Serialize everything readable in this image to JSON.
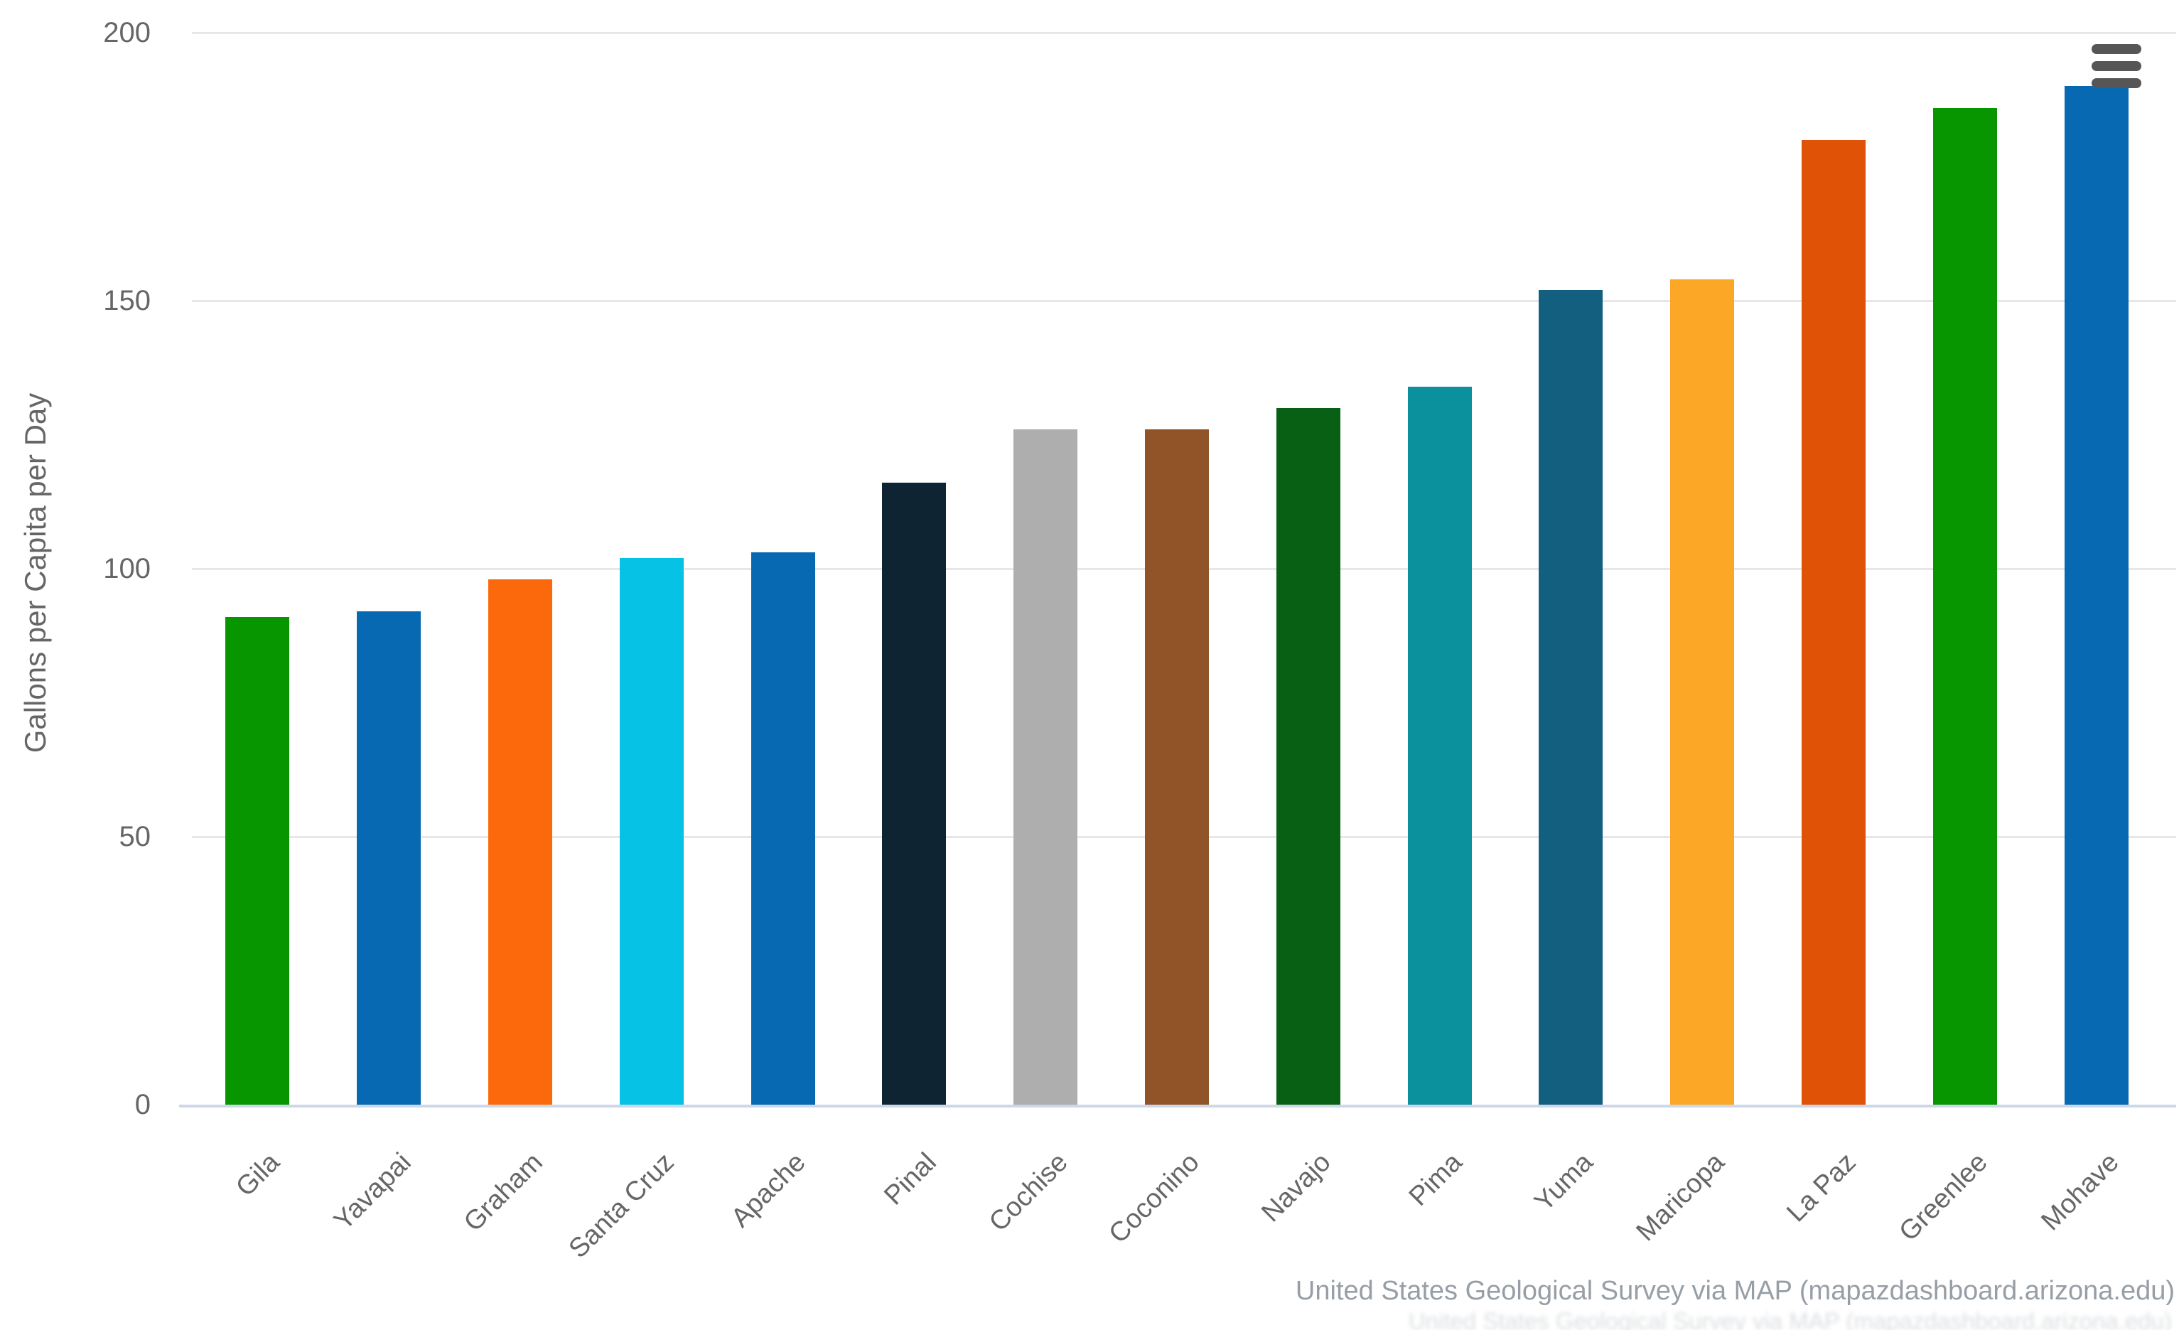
{
  "chart": {
    "y_axis_title": "Gallons per Capita per Day",
    "credits": "United States Geological Survey via MAP (mapazdashboard.arizona.edu)",
    "menu": {
      "icon": "hamburger-icon"
    }
  },
  "chart_data": {
    "type": "bar",
    "title": "",
    "xlabel": "",
    "ylabel": "Gallons per Capita per Day",
    "ylim": [
      0,
      200
    ],
    "yticks": [
      0,
      50,
      100,
      150,
      200
    ],
    "grid": true,
    "legend": false,
    "categories": [
      "Gila",
      "Yavapai",
      "Graham",
      "Santa Cruz",
      "Apache",
      "Pinal",
      "Cochise",
      "Coconino",
      "Navajo",
      "Pima",
      "Yuma",
      "Maricopa",
      "La Paz",
      "Greenlee",
      "Mohave"
    ],
    "values": [
      91,
      92,
      98,
      102,
      103,
      116,
      126,
      126,
      130,
      134,
      152,
      154,
      180,
      186,
      190
    ],
    "bar_colors": [
      "#089600",
      "#0769b1",
      "#fc690c",
      "#06c3e6",
      "#0769b1",
      "#0e2433",
      "#aeaeae",
      "#905428",
      "#086014",
      "#0b909d",
      "#135f80",
      "#fca726",
      "#e05206",
      "#089600",
      "#0769b1"
    ],
    "axis_label_color": "#666666",
    "gridline_color": "#e7e7e7",
    "axis_line_color": "#ccd7e8",
    "credits": "United States Geological Survey via MAP (mapazdashboard.arizona.edu)"
  }
}
